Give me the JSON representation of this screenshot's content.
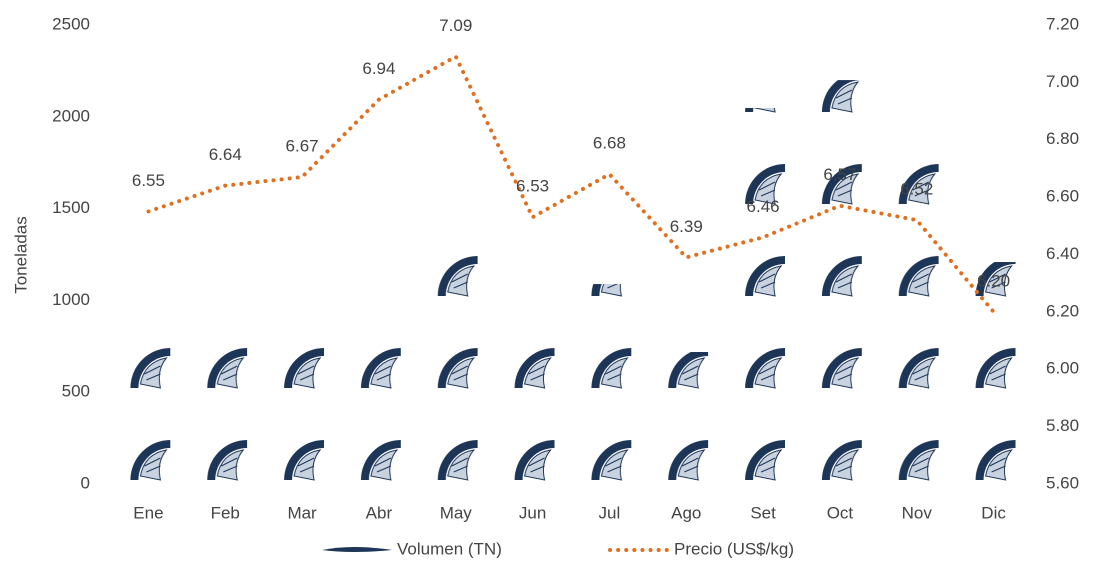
{
  "chart_data": {
    "type": "bar-line",
    "y_axis_label": "Toneladas",
    "categories": [
      "Ene",
      "Feb",
      "Mar",
      "Abr",
      "May",
      "Jun",
      "Jul",
      "Ago",
      "Set",
      "Oct",
      "Nov",
      "Dic"
    ],
    "series": [
      {
        "name": "Volumen (TN)",
        "type": "bar",
        "color": "#1d3557",
        "values": [
          828,
          795,
          773,
          806,
          1318,
          1002,
          1089,
          719,
          2048,
          2200,
          1808,
          1209
        ]
      },
      {
        "name": "Precio (US$/kg)",
        "type": "line",
        "axis": "y2",
        "color": "#e07020",
        "values": [
          6.55,
          6.64,
          6.67,
          6.94,
          7.09,
          6.53,
          6.68,
          6.39,
          6.46,
          6.57,
          6.52,
          6.2
        ],
        "value_labels": [
          "6.55",
          "6.64",
          "6.67",
          "6.94",
          "7.09",
          "6.53",
          "6.68",
          "6.39",
          "6.46",
          "6.57",
          "6.52",
          "6.20"
        ]
      }
    ],
    "ylim": [
      0,
      2500
    ],
    "yticks": [
      0,
      500,
      1000,
      1500,
      2000,
      2500
    ],
    "y2lim": [
      5.6,
      7.2
    ],
    "y2ticks": [
      {
        "value": 5.6,
        "label": "5.60"
      },
      {
        "value": 5.8,
        "label": "5.80"
      },
      {
        "value": 6.0,
        "label": "6.00"
      },
      {
        "value": 6.2,
        "label": "6.20"
      },
      {
        "value": 6.4,
        "label": "6.40"
      },
      {
        "value": 6.6,
        "label": "6.60"
      },
      {
        "value": 6.8,
        "label": "6.80"
      },
      {
        "value": 7.0,
        "label": "7.00"
      },
      {
        "value": 7.2,
        "label": "7.20"
      }
    ],
    "legend": "bottom"
  }
}
